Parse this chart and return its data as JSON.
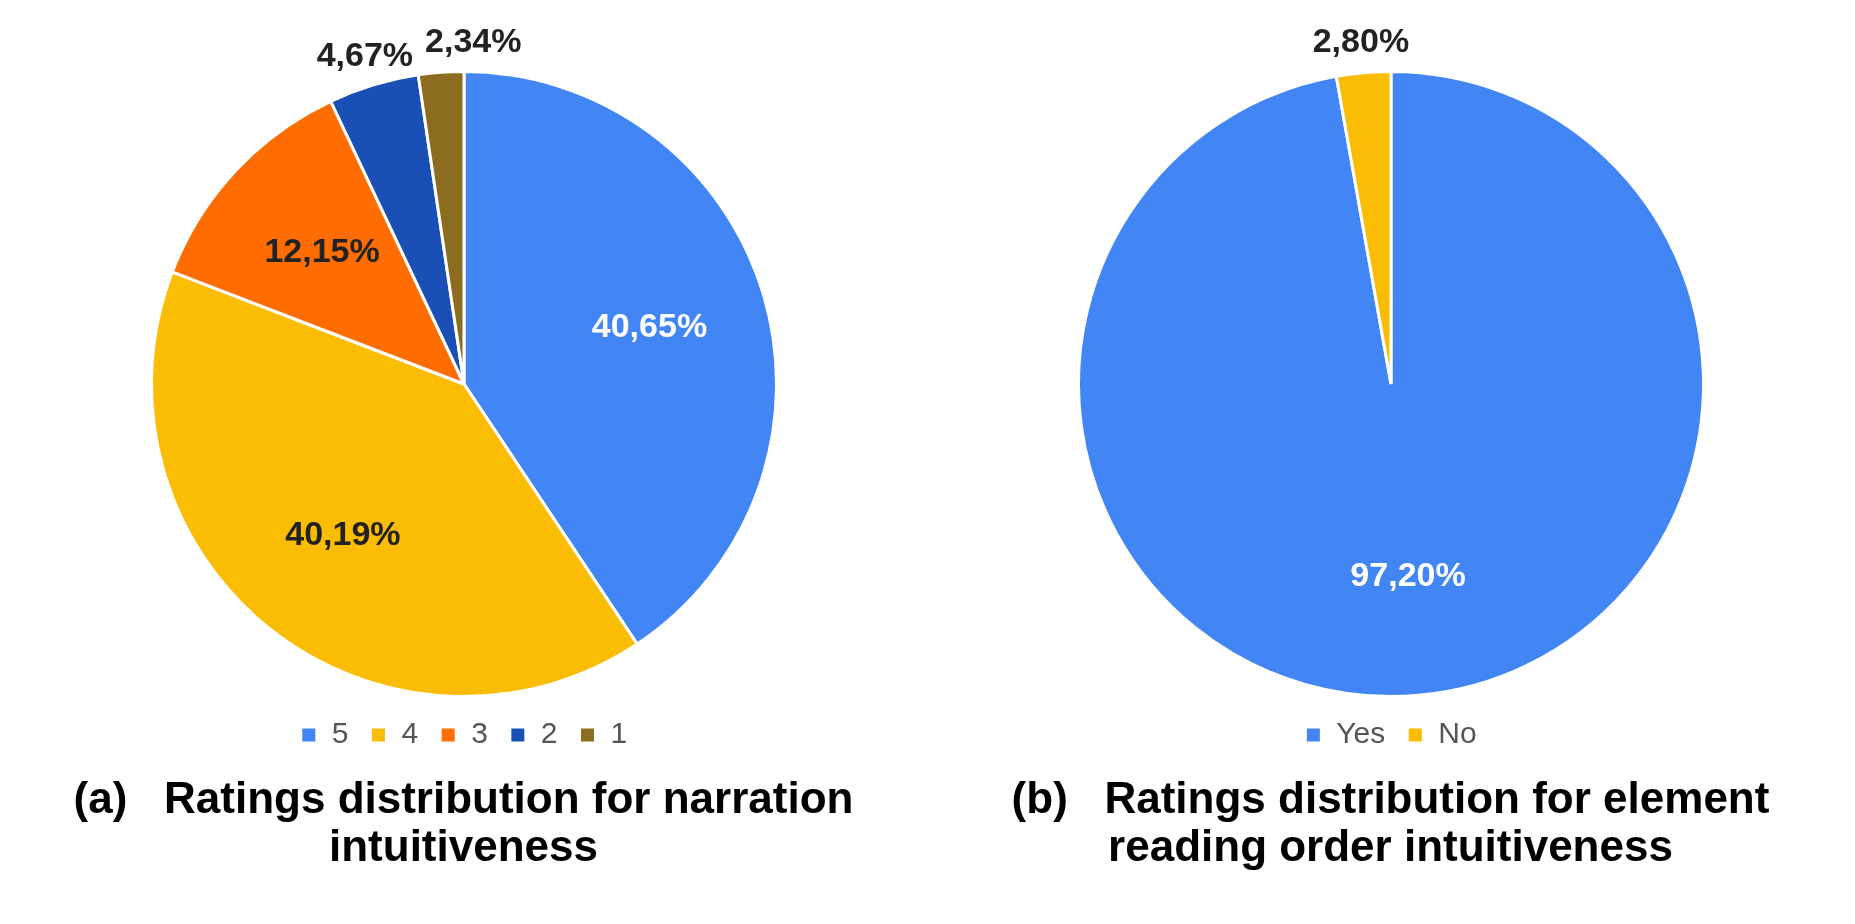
{
  "chart_data": [
    {
      "type": "pie",
      "title": "(a)   Ratings distribution for narration intuitiveness",
      "categories": [
        "5",
        "4",
        "3",
        "2",
        "1"
      ],
      "values": [
        40.65,
        40.19,
        12.15,
        4.67,
        2.34
      ],
      "colors": [
        "#4285f4",
        "#fbbc04",
        "#ff6d01",
        "#1a4fb5",
        "#8c6d1f"
      ],
      "value_labels": [
        "40,65%",
        "40,19%",
        "12,15%",
        "4,67%",
        "2,34%"
      ],
      "legend": "bottom"
    },
    {
      "type": "pie",
      "title": "(b)   Ratings distribution for element reading order intuitiveness",
      "categories": [
        "Yes",
        "No"
      ],
      "values": [
        97.2,
        2.8
      ],
      "colors": [
        "#4285f4",
        "#fbbc04"
      ],
      "value_labels": [
        "97,20%",
        "2,80%"
      ],
      "legend": "bottom"
    }
  ]
}
